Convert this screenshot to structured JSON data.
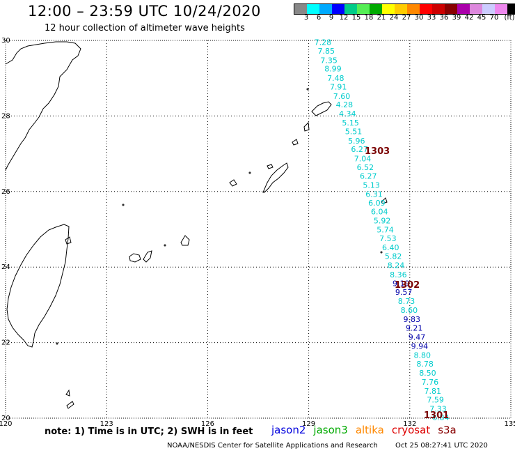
{
  "header": {
    "title": "12:00 – 23:59 UTC 10/24/2020",
    "subtitle": "12 hour collection of altimeter wave heights"
  },
  "legend": {
    "colors": [
      "#888888",
      "#00ffff",
      "#00aaff",
      "#0000ff",
      "#00cc88",
      "#55ee55",
      "#00aa00",
      "#ffff00",
      "#ffcc00",
      "#ff8800",
      "#ff0000",
      "#cc0000",
      "#880000",
      "#aa00aa",
      "#dd88dd",
      "#ccccff",
      "#ee88ee",
      "#000000"
    ],
    "labels": [
      "3",
      "6",
      "9",
      "12",
      "15",
      "18",
      "21",
      "24",
      "27",
      "30",
      "33",
      "36",
      "39",
      "42",
      "45",
      "70",
      "(ft)"
    ]
  },
  "axes": {
    "x_ticks": [
      "120",
      "123",
      "126",
      "129",
      "132",
      "135"
    ],
    "y_ticks": [
      "30",
      "28",
      "26",
      "24",
      "22",
      "20"
    ]
  },
  "pass_labels": [
    "1303",
    "1302",
    "1301"
  ],
  "observations": [
    {
      "value": "7.28",
      "lat": 29.95,
      "lon": 129.42,
      "color": "#00cccc"
    },
    {
      "value": "7.85",
      "lat": 29.72,
      "lon": 129.52,
      "color": "#00cccc"
    },
    {
      "value": "7.35",
      "lat": 29.47,
      "lon": 129.6,
      "color": "#00cccc"
    },
    {
      "value": "8.99",
      "lat": 29.25,
      "lon": 129.72,
      "color": "#00cccc"
    },
    {
      "value": "7.48",
      "lat": 29.0,
      "lon": 129.8,
      "color": "#00cccc"
    },
    {
      "value": "7.91",
      "lat": 28.77,
      "lon": 129.88,
      "color": "#00cccc"
    },
    {
      "value": "7.60",
      "lat": 28.52,
      "lon": 129.98,
      "color": "#00cccc"
    },
    {
      "value": "4.28",
      "lat": 28.3,
      "lon": 130.06,
      "color": "#00cccc"
    },
    {
      "value": "4.34",
      "lat": 28.06,
      "lon": 130.15,
      "color": "#00cccc"
    },
    {
      "value": "5.15",
      "lat": 27.82,
      "lon": 130.24,
      "color": "#00cccc"
    },
    {
      "value": "5.51",
      "lat": 27.59,
      "lon": 130.33,
      "color": "#00cccc"
    },
    {
      "value": "5.96",
      "lat": 27.34,
      "lon": 130.42,
      "color": "#00cccc"
    },
    {
      "value": "6.27",
      "lat": 27.12,
      "lon": 130.51,
      "color": "#00cccc"
    },
    {
      "value": "7.04",
      "lat": 26.87,
      "lon": 130.6,
      "color": "#00cccc"
    },
    {
      "value": "6.52",
      "lat": 26.64,
      "lon": 130.68,
      "color": "#00cccc"
    },
    {
      "value": "6.27",
      "lat": 26.41,
      "lon": 130.77,
      "color": "#00cccc"
    },
    {
      "value": "5.13",
      "lat": 26.17,
      "lon": 130.86,
      "color": "#00cccc"
    },
    {
      "value": "6.31",
      "lat": 25.93,
      "lon": 130.94,
      "color": "#00cccc"
    },
    {
      "value": "6.09",
      "lat": 25.7,
      "lon": 131.02,
      "color": "#00cccc"
    },
    {
      "value": "6.04",
      "lat": 25.47,
      "lon": 131.1,
      "color": "#00cccc"
    },
    {
      "value": "5.92",
      "lat": 25.23,
      "lon": 131.18,
      "color": "#00cccc"
    },
    {
      "value": "5.74",
      "lat": 24.99,
      "lon": 131.27,
      "color": "#00cccc"
    },
    {
      "value": "7.53",
      "lat": 24.76,
      "lon": 131.35,
      "color": "#00cccc"
    },
    {
      "value": "6.40",
      "lat": 24.52,
      "lon": 131.43,
      "color": "#00cccc"
    },
    {
      "value": "5.82",
      "lat": 24.29,
      "lon": 131.51,
      "color": "#00cccc"
    },
    {
      "value": "8.24",
      "lat": 24.05,
      "lon": 131.59,
      "color": "#00cccc"
    },
    {
      "value": "8.36",
      "lat": 23.8,
      "lon": 131.66,
      "color": "#00cccc"
    },
    {
      "value": "9.19",
      "lat": 23.57,
      "lon": 131.74,
      "color": "#0000aa"
    },
    {
      "value": "9.57",
      "lat": 23.34,
      "lon": 131.82,
      "color": "#0000aa"
    },
    {
      "value": "8.73",
      "lat": 23.1,
      "lon": 131.9,
      "color": "#00cccc"
    },
    {
      "value": "8.60",
      "lat": 22.86,
      "lon": 131.98,
      "color": "#00cccc"
    },
    {
      "value": "9.83",
      "lat": 22.62,
      "lon": 132.06,
      "color": "#0000aa"
    },
    {
      "value": "9.21",
      "lat": 22.39,
      "lon": 132.13,
      "color": "#0000aa"
    },
    {
      "value": "9.47",
      "lat": 22.15,
      "lon": 132.21,
      "color": "#0000aa"
    },
    {
      "value": "9.94",
      "lat": 21.91,
      "lon": 132.29,
      "color": "#0000aa"
    },
    {
      "value": "8.80",
      "lat": 21.67,
      "lon": 132.37,
      "color": "#00cccc"
    },
    {
      "value": "8.78",
      "lat": 21.44,
      "lon": 132.45,
      "color": "#00cccc"
    },
    {
      "value": "8.50",
      "lat": 21.2,
      "lon": 132.53,
      "color": "#00cccc"
    },
    {
      "value": "7.76",
      "lat": 20.96,
      "lon": 132.6,
      "color": "#00cccc"
    },
    {
      "value": "7.81",
      "lat": 20.72,
      "lon": 132.68,
      "color": "#00cccc"
    },
    {
      "value": "7.59",
      "lat": 20.49,
      "lon": 132.76,
      "color": "#00cccc"
    },
    {
      "value": "7.33",
      "lat": 20.25,
      "lon": 132.84,
      "color": "#00cccc"
    },
    {
      "value": "6.84",
      "lat": 20.02,
      "lon": 132.92,
      "color": "#00cccc"
    }
  ],
  "footer": {
    "note": "note: 1) Time is in UTC; 2) SWH is in feet",
    "satellites": [
      {
        "name": "jason2",
        "color": "#0000dd"
      },
      {
        "name": "jason3",
        "color": "#00aa00"
      },
      {
        "name": "altika",
        "color": "#ff8800"
      },
      {
        "name": "cryosat",
        "color": "#dd0000"
      },
      {
        "name": "s3a",
        "color": "#880000"
      }
    ],
    "credit": "NOAA/NESDIS Center for Satellite Applications and Research",
    "timestamp": "Oct 25 08:27:41 UTC 2020"
  }
}
